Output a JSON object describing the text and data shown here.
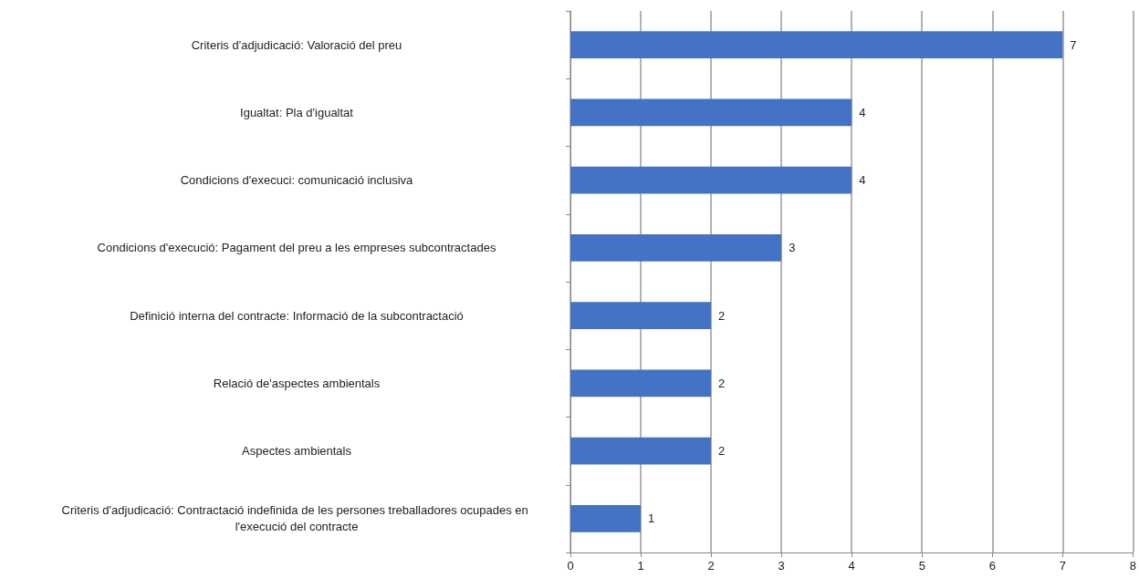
{
  "chart_data": {
    "type": "bar",
    "orientation": "horizontal",
    "categories": [
      "Criteris d'adjudicació: Valoració del preu",
      "Igualtat: Pla d'igualtat",
      "Condicions d'execuci: comunicació inclusiva",
      "Condicions d'execució: Pagament del preu a les empreses subcontractades",
      "Definició interna del contracte: Informació de la subcontractació",
      "Relació de'aspectes ambientals",
      "Aspectes ambientals",
      "Criteris d'adjudicació: Contractació indefinida de les persones treballadores ocupades en l'execució del contracte"
    ],
    "values": [
      7,
      4,
      4,
      3,
      2,
      2,
      2,
      1
    ],
    "color": "#4472c4",
    "xlim": [
      0,
      8
    ],
    "xticks": [
      0,
      1,
      2,
      3,
      4,
      5,
      6,
      7,
      8
    ],
    "grid": "x",
    "data_labels": true
  }
}
